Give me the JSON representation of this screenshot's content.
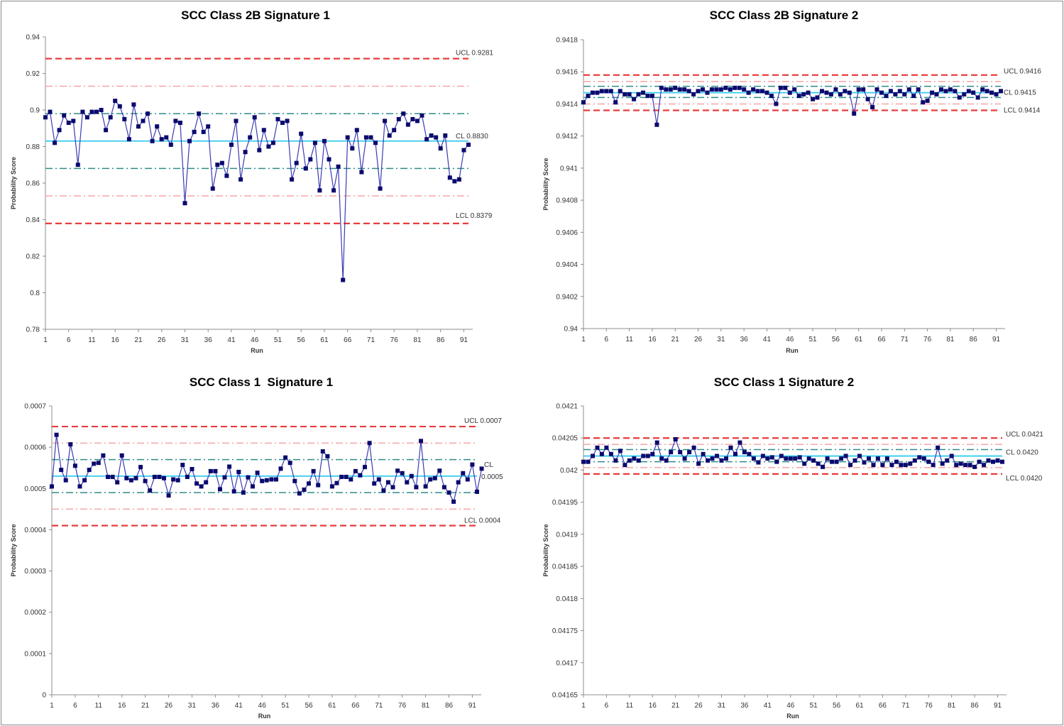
{
  "chart_data": [
    {
      "type": "line",
      "title": "SCC Class 2B Signature 1",
      "xlabel": "Run",
      "ylabel": "Probability Score",
      "ylim": [
        0.78,
        0.94
      ],
      "yticks": [
        "0.78",
        "0.8",
        "0.82",
        "0.84",
        "0.86",
        "0.88",
        "0.9",
        "0.92",
        "0.94"
      ],
      "xticks": [
        "1",
        "6",
        "11",
        "16",
        "21",
        "26",
        "31",
        "36",
        "41",
        "46",
        "51",
        "56",
        "61",
        "66",
        "71",
        "76",
        "81",
        "86",
        "91"
      ],
      "x_range": [
        1,
        92
      ],
      "series": [
        {
          "values": [
            0.896,
            0.899,
            0.882,
            0.889,
            0.897,
            0.893,
            0.894,
            0.87,
            0.899,
            0.896,
            0.899,
            0.899,
            0.9,
            0.889,
            0.896,
            0.905,
            0.902,
            0.895,
            0.884,
            0.903,
            0.891,
            0.894,
            0.898,
            0.883,
            0.891,
            0.884,
            0.885,
            0.881,
            0.894,
            0.893,
            0.849,
            0.883,
            0.888,
            0.898,
            0.888,
            0.891,
            0.857,
            0.87,
            0.871,
            0.864,
            0.881,
            0.894,
            0.862,
            0.877,
            0.885,
            0.896,
            0.878,
            0.889,
            0.88,
            0.882,
            0.895,
            0.893,
            0.894,
            0.862,
            0.871,
            0.887,
            0.868,
            0.873,
            0.882,
            0.856,
            0.883,
            0.873,
            0.856,
            0.869,
            0.807,
            0.885,
            0.879,
            0.889,
            0.866,
            0.885,
            0.885,
            0.882,
            0.857,
            0.894,
            0.886,
            0.889,
            0.895,
            0.898,
            0.892,
            0.895,
            0.894,
            0.897,
            0.884,
            0.886,
            0.885,
            0.879,
            0.886,
            0.863,
            0.861,
            0.862,
            0.878,
            0.881
          ]
        }
      ],
      "limits": [
        {
          "value": 0.9281,
          "style": "ucl",
          "label": "UCL 0.9281"
        },
        {
          "value": 0.913,
          "style": "sigma2",
          "label": ""
        },
        {
          "value": 0.898,
          "style": "sigma1",
          "label": ""
        },
        {
          "value": 0.883,
          "style": "cl",
          "label": "CL 0.8830"
        },
        {
          "value": 0.868,
          "style": "sigma1",
          "label": ""
        },
        {
          "value": 0.853,
          "style": "sigma2",
          "label": ""
        },
        {
          "value": 0.8379,
          "style": "lcl",
          "label": "LCL 0.8379"
        }
      ]
    },
    {
      "type": "line",
      "title": "SCC Class 2B Signature 2",
      "xlabel": "Run",
      "ylabel": "Probability Score",
      "ylim": [
        0.94,
        0.9418
      ],
      "yticks": [
        "0.94",
        "0.9402",
        "0.9404",
        "0.9406",
        "0.9408",
        "0.941",
        "0.9412",
        "0.9414",
        "0.9416",
        "0.9418"
      ],
      "xticks": [
        "1",
        "6",
        "11",
        "16",
        "21",
        "26",
        "31",
        "36",
        "41",
        "46",
        "51",
        "56",
        "61",
        "66",
        "71",
        "76",
        "81",
        "86",
        "91"
      ],
      "x_range": [
        1,
        92
      ],
      "series": [
        {
          "values": [
            0.94141,
            0.94145,
            0.94147,
            0.94147,
            0.94148,
            0.94148,
            0.94148,
            0.94141,
            0.94148,
            0.94146,
            0.94146,
            0.94143,
            0.94146,
            0.94147,
            0.94145,
            0.94145,
            0.94127,
            0.9415,
            0.94149,
            0.94149,
            0.9415,
            0.94149,
            0.94149,
            0.94148,
            0.94146,
            0.94148,
            0.94149,
            0.94147,
            0.94149,
            0.94149,
            0.94149,
            0.9415,
            0.94149,
            0.9415,
            0.9415,
            0.94149,
            0.94147,
            0.94149,
            0.94148,
            0.94148,
            0.94147,
            0.94145,
            0.9414,
            0.9415,
            0.9415,
            0.94147,
            0.94149,
            0.94145,
            0.94146,
            0.94147,
            0.94143,
            0.94144,
            0.94148,
            0.94147,
            0.94146,
            0.94149,
            0.94146,
            0.94148,
            0.94147,
            0.94134,
            0.94149,
            0.94149,
            0.94143,
            0.94138,
            0.94149,
            0.94147,
            0.94145,
            0.94148,
            0.94146,
            0.94148,
            0.94146,
            0.94149,
            0.94145,
            0.94149,
            0.94141,
            0.94142,
            0.94147,
            0.94146,
            0.94149,
            0.94148,
            0.94149,
            0.94148,
            0.94144,
            0.94146,
            0.94148,
            0.94147,
            0.94144,
            0.94149,
            0.94148,
            0.94147,
            0.94146,
            0.94148
          ]
        }
      ],
      "limits": [
        {
          "value": 0.94158,
          "style": "ucl",
          "label": "UCL 0.9416"
        },
        {
          "value": 0.94154,
          "style": "sigma2",
          "label": ""
        },
        {
          "value": 0.94151,
          "style": "sigma1",
          "label": ""
        },
        {
          "value": 0.94147,
          "style": "cl",
          "label": "CL 0.9415"
        },
        {
          "value": 0.94144,
          "style": "sigma1",
          "label": ""
        },
        {
          "value": 0.9414,
          "style": "sigma2",
          "label": ""
        },
        {
          "value": 0.94136,
          "style": "lcl",
          "label": "LCL 0.9414"
        }
      ]
    },
    {
      "type": "line",
      "title": "SCC Class 1  Signature 1",
      "xlabel": "Run",
      "ylabel": "Probability Score",
      "ylim": [
        0,
        0.0007
      ],
      "yticks": [
        "0",
        "0.0001",
        "0.0002",
        "0.0003",
        "0.0004",
        "0.0005",
        "0.0006",
        "0.0007"
      ],
      "xticks": [
        "1",
        "6",
        "11",
        "16",
        "21",
        "26",
        "31",
        "36",
        "41",
        "46",
        "51",
        "56",
        "61",
        "66",
        "71",
        "76",
        "81",
        "86",
        "91"
      ],
      "x_range": [
        1,
        92
      ],
      "series": [
        {
          "values": [
            0.000505,
            0.00063,
            0.000545,
            0.00052,
            0.000607,
            0.000555,
            0.000505,
            0.00052,
            0.000545,
            0.00056,
            0.000562,
            0.00058,
            0.000528,
            0.000528,
            0.000515,
            0.00058,
            0.000525,
            0.00052,
            0.000525,
            0.000552,
            0.000518,
            0.000495,
            0.000528,
            0.000528,
            0.000525,
            0.000483,
            0.000522,
            0.00052,
            0.000557,
            0.000528,
            0.000547,
            0.000512,
            0.000505,
            0.000515,
            0.000542,
            0.000542,
            0.000498,
            0.000527,
            0.000553,
            0.000493,
            0.00054,
            0.00049,
            0.000527,
            0.000505,
            0.000538,
            0.000518,
            0.00052,
            0.000522,
            0.000522,
            0.000548,
            0.000575,
            0.000562,
            0.000518,
            0.000488,
            0.000497,
            0.000512,
            0.000542,
            0.000508,
            0.00059,
            0.000578,
            0.000505,
            0.000513,
            0.000528,
            0.000528,
            0.000522,
            0.000542,
            0.000532,
            0.000552,
            0.00061,
            0.000512,
            0.000522,
            0.000495,
            0.000515,
            0.000503,
            0.000543,
            0.000537,
            0.000515,
            0.00053,
            0.000503,
            0.000615,
            0.000505,
            0.000522,
            0.000525,
            0.000543,
            0.000503,
            0.00049,
            0.000468,
            0.000515,
            0.000537,
            0.000522,
            0.000558,
            0.000492,
            0.000548
          ]
        }
      ],
      "limits": [
        {
          "value": 0.00065,
          "style": "ucl",
          "label": "UCL 0.0007"
        },
        {
          "value": 0.00061,
          "style": "sigma2",
          "label": ""
        },
        {
          "value": 0.00057,
          "style": "sigma1",
          "label": ""
        },
        {
          "value": 0.00053,
          "style": "cl",
          "label": "CL 0.0005"
        },
        {
          "value": 0.00049,
          "style": "sigma1",
          "label": ""
        },
        {
          "value": 0.00045,
          "style": "sigma2",
          "label": ""
        },
        {
          "value": 0.00041,
          "style": "lcl",
          "label": "LCL 0.0004"
        }
      ]
    },
    {
      "type": "line",
      "title": "SCC Class 1 Signature 2",
      "xlabel": "Run",
      "ylabel": "Probability Score",
      "ylim": [
        0.04165,
        0.0421
      ],
      "yticks": [
        "0.04165",
        "0.0417",
        "0.04175",
        "0.0418",
        "0.04185",
        "0.0419",
        "0.04195",
        "0.042",
        "0.04205",
        "0.0421"
      ],
      "xticks": [
        "1",
        "6",
        "11",
        "16",
        "21",
        "26",
        "31",
        "36",
        "41",
        "46",
        "51",
        "56",
        "61",
        "66",
        "71",
        "76",
        "81",
        "86",
        "91"
      ],
      "x_range": [
        1,
        92
      ],
      "series": [
        {
          "values": [
            0.042013,
            0.042013,
            0.042022,
            0.042035,
            0.042025,
            0.042035,
            0.042025,
            0.042015,
            0.04203,
            0.042008,
            0.042015,
            0.042018,
            0.042015,
            0.042022,
            0.042022,
            0.042025,
            0.042043,
            0.042018,
            0.042015,
            0.042028,
            0.042048,
            0.042028,
            0.042018,
            0.042028,
            0.042035,
            0.04201,
            0.042025,
            0.042015,
            0.042018,
            0.042022,
            0.042015,
            0.042018,
            0.042035,
            0.042025,
            0.042043,
            0.042028,
            0.042025,
            0.042018,
            0.042012,
            0.042022,
            0.042018,
            0.04202,
            0.042013,
            0.042022,
            0.042018,
            0.042018,
            0.042018,
            0.04202,
            0.04201,
            0.042018,
            0.042015,
            0.04201,
            0.042005,
            0.042018,
            0.042013,
            0.042013,
            0.042018,
            0.042022,
            0.042008,
            0.042015,
            0.042022,
            0.042012,
            0.042018,
            0.042008,
            0.042018,
            0.042008,
            0.042018,
            0.042008,
            0.042013,
            0.042008,
            0.042008,
            0.04201,
            0.042015,
            0.04202,
            0.042018,
            0.042013,
            0.042008,
            0.042035,
            0.04201,
            0.042015,
            0.042022,
            0.042008,
            0.04201,
            0.042008,
            0.042008,
            0.042005,
            0.042013,
            0.042008,
            0.042015,
            0.042013,
            0.042015,
            0.042013
          ]
        }
      ],
      "limits": [
        {
          "value": 0.04205,
          "style": "ucl",
          "label": "UCL 0.0421"
        },
        {
          "value": 0.04204,
          "style": "sigma2",
          "label": ""
        },
        {
          "value": 0.042032,
          "style": "sigma1",
          "label": ""
        },
        {
          "value": 0.042022,
          "style": "cl",
          "label": "CL 0.0420"
        },
        {
          "value": 0.042013,
          "style": "sigma1",
          "label": ""
        },
        {
          "value": 0.042004,
          "style": "sigma2",
          "label": ""
        },
        {
          "value": 0.041994,
          "style": "lcl",
          "label": "LCL 0.0420"
        }
      ]
    }
  ],
  "colors": {
    "data_line": "#3b3bb3",
    "marker": "#0a0a6e",
    "ucl_lcl": "#e83c3c",
    "two_sigma": "#f4a6a6",
    "one_sigma": "#2e8b8b",
    "center": "#33ccee",
    "axis": "#8c8c8c",
    "text": "#333333"
  }
}
